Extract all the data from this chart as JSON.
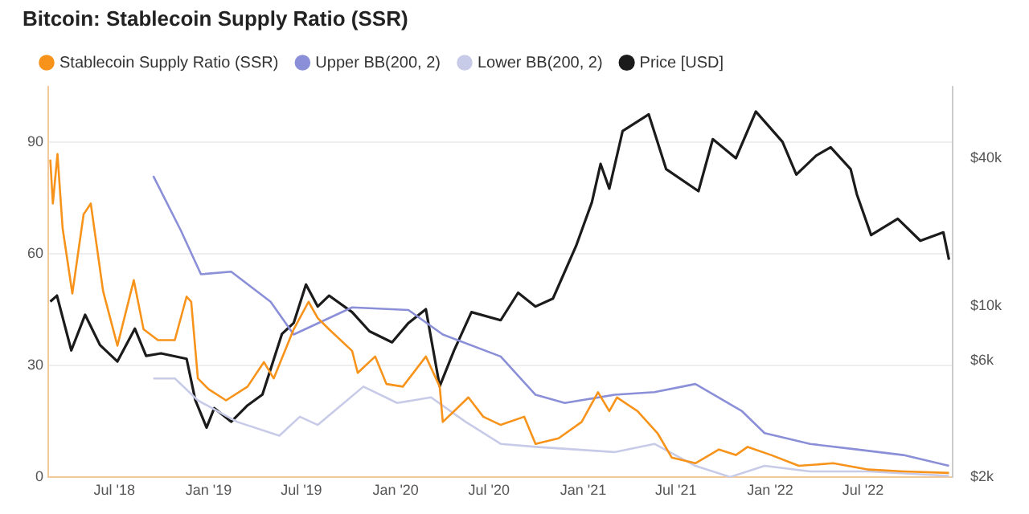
{
  "chart_data": {
    "type": "line",
    "title": "Bitcoin: Stablecoin Supply Ratio (SSR)",
    "legend": "top left",
    "grid": "y",
    "marker": "none",
    "line_style": "solid",
    "log": "y2",
    "xlim": [
      "2018-02-22",
      "2022-12-23"
    ],
    "xticks": [
      {
        "value": "2018-07-01",
        "label": "Jul '18"
      },
      {
        "value": "2019-01-01",
        "label": "Jan '19"
      },
      {
        "value": "2019-07-01",
        "label": "Jul '19"
      },
      {
        "value": "2020-01-01",
        "label": "Jan '20"
      },
      {
        "value": "2020-07-01",
        "label": "Jul '20"
      },
      {
        "value": "2021-01-01",
        "label": "Jan '21"
      },
      {
        "value": "2021-07-01",
        "label": "Jul '21"
      },
      {
        "value": "2022-01-01",
        "label": "Jan '22"
      },
      {
        "value": "2022-07-01",
        "label": "Jul '22"
      }
    ],
    "ylim": [
      0,
      105
    ],
    "yticks": [
      0,
      30,
      60,
      90
    ],
    "y2lim": [
      2000,
      78000
    ],
    "y2ticks": [
      {
        "value": 2000,
        "label": "$2k"
      },
      {
        "value": 6000,
        "label": "$6k"
      },
      {
        "value": 10000,
        "label": "$10k"
      },
      {
        "value": 40000,
        "label": "$40k"
      }
    ],
    "series": [
      {
        "name": "Stablecoin Supply Ratio (SSR)",
        "color": "#f7931a",
        "x": [
          "2018-02-26",
          "2018-03-03",
          "2018-03-12",
          "2018-03-22",
          "2018-04-10",
          "2018-05-02",
          "2018-05-16",
          "2018-06-09",
          "2018-07-07",
          "2018-08-08",
          "2018-08-27",
          "2018-09-24",
          "2018-10-27",
          "2018-11-19",
          "2018-11-28",
          "2018-12-11",
          "2019-01-01",
          "2019-02-04",
          "2019-03-18",
          "2019-04-19",
          "2019-05-08",
          "2019-06-16",
          "2019-07-15",
          "2019-08-02",
          "2019-08-24",
          "2019-10-08",
          "2019-10-19",
          "2019-11-22",
          "2019-12-14",
          "2020-01-15",
          "2020-02-29",
          "2020-03-27",
          "2020-04-02",
          "2020-04-24",
          "2020-05-22",
          "2020-06-20",
          "2020-07-24",
          "2020-09-08",
          "2020-09-30",
          "2020-11-14",
          "2020-12-29",
          "2021-01-30",
          "2021-02-21",
          "2021-03-08",
          "2021-04-17",
          "2021-05-26",
          "2021-06-23",
          "2021-08-08",
          "2021-09-23",
          "2021-10-26",
          "2021-11-18",
          "2022-01-03",
          "2022-02-26",
          "2022-05-04",
          "2022-07-12",
          "2022-09-18",
          "2022-12-16"
        ],
        "values": [
          85.4,
          73.6,
          86.9,
          67,
          49.4,
          70.7,
          73.6,
          50.1,
          35.4,
          53,
          39.8,
          36.9,
          36.9,
          48.6,
          47.2,
          26.6,
          23.7,
          20.7,
          24.4,
          31,
          26.6,
          39.8,
          47.2,
          42.8,
          39.8,
          34,
          28.1,
          32.5,
          25.1,
          24.4,
          32.5,
          24.4,
          14.9,
          17.8,
          21.5,
          16.3,
          14.1,
          16.3,
          9,
          10.5,
          14.9,
          22.9,
          17.8,
          21.5,
          17.8,
          11.9,
          5.3,
          3.8,
          7.5,
          6,
          8.2,
          6,
          3.1,
          3.8,
          2.1,
          1.6,
          1.2
        ]
      },
      {
        "name": "Upper BB(200, 2)",
        "color": "#8a8fd8",
        "x": [
          "2018-09-15",
          "2018-11-08",
          "2018-12-17",
          "2019-02-14",
          "2019-05-02",
          "2019-06-16",
          "2019-10-08",
          "2020-01-26",
          "2020-04-02",
          "2020-07-24",
          "2020-09-30",
          "2020-11-26",
          "2021-03-03",
          "2021-05-20",
          "2021-08-08",
          "2021-11-07",
          "2021-12-21",
          "2022-03-20",
          "2022-06-19",
          "2022-09-18",
          "2022-12-16"
        ],
        "values": [
          81,
          66.3,
          54.6,
          55.3,
          47.2,
          38.4,
          45.7,
          45,
          38.4,
          32.5,
          22.2,
          20,
          22.2,
          22.9,
          25.1,
          17.8,
          11.9,
          9,
          7.5,
          6,
          3.1
        ]
      },
      {
        "name": "Lower BB(200, 2)",
        "color": "#c8cbe8",
        "x": [
          "2018-09-15",
          "2018-10-27",
          "2018-12-11",
          "2019-02-26",
          "2019-05-19",
          "2019-06-28",
          "2019-08-02",
          "2019-10-30",
          "2020-01-04",
          "2020-03-10",
          "2020-05-17",
          "2020-07-24",
          "2020-09-30",
          "2021-03-03",
          "2021-05-20",
          "2021-08-08",
          "2021-10-15",
          "2021-12-21",
          "2022-03-20",
          "2022-07-12",
          "2022-12-16"
        ],
        "values": [
          26.6,
          26.6,
          20.7,
          14.9,
          11.2,
          16.3,
          14.1,
          24.4,
          20,
          21.5,
          14.9,
          9,
          8.2,
          6.8,
          9,
          3.1,
          0.1,
          3.1,
          1.6,
          1.6,
          0.4
        ]
      },
      {
        "name": "Price [USD]",
        "color": "#1b1b1b",
        "axis": "y2",
        "x": [
          "2018-02-26",
          "2018-03-11",
          "2018-04-08",
          "2018-05-05",
          "2018-06-03",
          "2018-07-07",
          "2018-08-10",
          "2018-09-01",
          "2018-09-30",
          "2018-11-19",
          "2018-12-06",
          "2018-12-28",
          "2019-01-12",
          "2019-02-14",
          "2019-03-18",
          "2019-04-16",
          "2019-05-24",
          "2019-06-16",
          "2019-07-10",
          "2019-08-02",
          "2019-08-24",
          "2019-10-08",
          "2019-11-11",
          "2019-12-25",
          "2020-01-26",
          "2020-02-29",
          "2020-03-27",
          "2020-04-24",
          "2020-05-28",
          "2020-07-24",
          "2020-08-27",
          "2020-09-30",
          "2020-11-03",
          "2020-12-18",
          "2021-01-18",
          "2021-02-04",
          "2021-02-21",
          "2021-03-19",
          "2021-05-09",
          "2021-06-12",
          "2021-08-14",
          "2021-09-11",
          "2021-10-26",
          "2021-12-04",
          "2022-01-25",
          "2022-02-21",
          "2022-04-01",
          "2022-04-29",
          "2022-06-07",
          "2022-06-19",
          "2022-07-17",
          "2022-09-07",
          "2022-10-21",
          "2022-12-05",
          "2022-12-16"
        ],
        "values": [
          10400,
          11000,
          6580,
          9190,
          6920,
          5930,
          8070,
          6250,
          6400,
          6080,
          4130,
          3190,
          3830,
          3370,
          3930,
          4350,
          7670,
          8510,
          12200,
          9930,
          11000,
          9420,
          7870,
          7100,
          8510,
          9680,
          4700,
          6580,
          9420,
          8730,
          11300,
          9930,
          10700,
          17500,
          26400,
          37800,
          30000,
          51500,
          60200,
          36000,
          29300,
          47700,
          39900,
          61800,
          46500,
          34200,
          40900,
          44200,
          36000,
          28500,
          19400,
          22600,
          18400,
          19900,
          15400
        ]
      }
    ]
  }
}
